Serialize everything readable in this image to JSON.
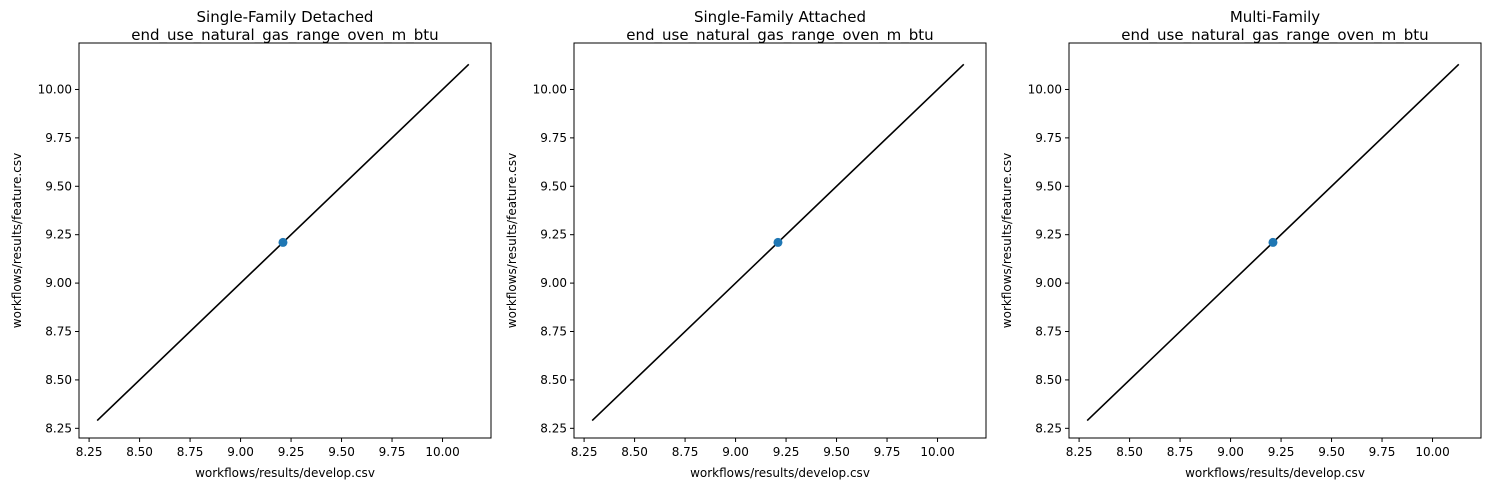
{
  "chart_data": [
    {
      "type": "scatter",
      "title": "Single-Family Detached",
      "subtitle": "end_use_natural_gas_range_oven_m_btu",
      "xlabel": "workflows/results/develop.csv",
      "ylabel": "workflows/results/feature.csv",
      "xlim": [
        8.2,
        10.24
      ],
      "ylim": [
        8.2,
        10.24
      ],
      "xticks": [
        "8.25",
        "8.50",
        "8.75",
        "9.00",
        "9.25",
        "9.50",
        "9.75",
        "10.00"
      ],
      "yticks": [
        "8.25",
        "8.50",
        "8.75",
        "9.00",
        "9.25",
        "9.50",
        "9.75",
        "10.00"
      ],
      "points": [
        {
          "x": 9.21,
          "y": 9.21
        }
      ],
      "reference_line": {
        "x": [
          8.29,
          10.13
        ],
        "y": [
          8.29,
          10.13
        ]
      },
      "point_color": "#1f77b4",
      "line_color": "#000000"
    },
    {
      "type": "scatter",
      "title": "Single-Family Attached",
      "subtitle": "end_use_natural_gas_range_oven_m_btu",
      "xlabel": "workflows/results/develop.csv",
      "ylabel": "workflows/results/feature.csv",
      "xlim": [
        8.2,
        10.24
      ],
      "ylim": [
        8.2,
        10.24
      ],
      "xticks": [
        "8.25",
        "8.50",
        "8.75",
        "9.00",
        "9.25",
        "9.50",
        "9.75",
        "10.00"
      ],
      "yticks": [
        "8.25",
        "8.50",
        "8.75",
        "9.00",
        "9.25",
        "9.50",
        "9.75",
        "10.00"
      ],
      "points": [
        {
          "x": 9.21,
          "y": 9.21
        }
      ],
      "reference_line": {
        "x": [
          8.29,
          10.13
        ],
        "y": [
          8.29,
          10.13
        ]
      },
      "point_color": "#1f77b4",
      "line_color": "#000000"
    },
    {
      "type": "scatter",
      "title": "Multi-Family",
      "subtitle": "end_use_natural_gas_range_oven_m_btu",
      "xlabel": "workflows/results/develop.csv",
      "ylabel": "workflows/results/feature.csv",
      "xlim": [
        8.2,
        10.24
      ],
      "ylim": [
        8.2,
        10.24
      ],
      "xticks": [
        "8.25",
        "8.50",
        "8.75",
        "9.00",
        "9.25",
        "9.50",
        "9.75",
        "10.00"
      ],
      "yticks": [
        "8.25",
        "8.50",
        "8.75",
        "9.00",
        "9.25",
        "9.50",
        "9.75",
        "10.00"
      ],
      "points": [
        {
          "x": 9.21,
          "y": 9.21
        }
      ],
      "reference_line": {
        "x": [
          8.29,
          10.13
        ],
        "y": [
          8.29,
          10.13
        ]
      },
      "point_color": "#1f77b4",
      "line_color": "#000000"
    }
  ]
}
